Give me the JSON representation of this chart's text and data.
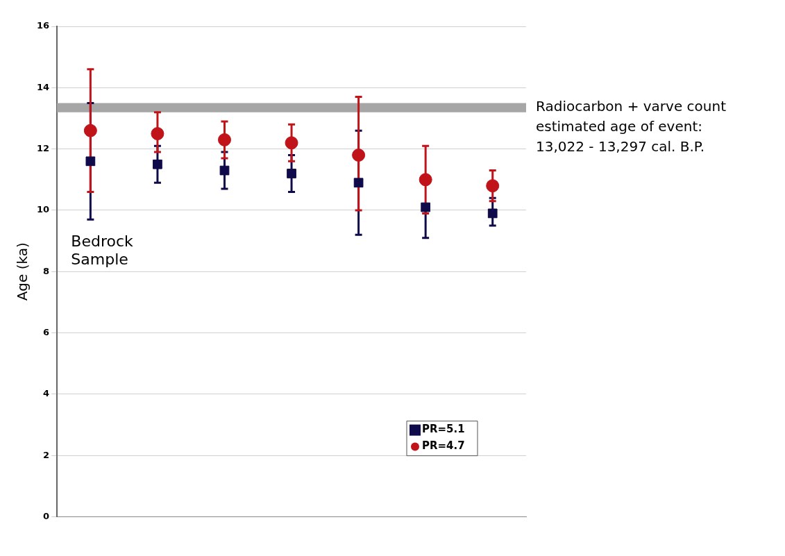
{
  "chart_data": {
    "type": "scatter",
    "ylabel": "Age (ka)",
    "categories": [
      null,
      null,
      null,
      null,
      null,
      null,
      null
    ],
    "ylim": [
      0,
      16
    ],
    "yticks": [
      0,
      2,
      4,
      6,
      8,
      10,
      12,
      14,
      16
    ],
    "grid": "y",
    "legend": "bottom right",
    "series": [
      {
        "name": "PR=5.1",
        "color": "#0f0a4a",
        "marker": "square",
        "values": [
          11.6,
          11.5,
          11.3,
          11.2,
          10.9,
          10.1,
          9.9
        ],
        "errors": [
          [
            9.7,
            13.5
          ],
          [
            10.9,
            12.1
          ],
          [
            10.7,
            11.9
          ],
          [
            10.6,
            11.8
          ],
          [
            9.2,
            12.6
          ],
          [
            9.1,
            10.1
          ],
          [
            9.5,
            10.4
          ]
        ]
      },
      {
        "name": "PR=4.7",
        "color": "#c0141a",
        "marker": "circle",
        "values": [
          12.6,
          12.5,
          12.3,
          12.2,
          11.8,
          11.0,
          10.8
        ],
        "errors": [
          [
            10.6,
            14.6
          ],
          [
            11.9,
            13.2
          ],
          [
            11.7,
            12.9
          ],
          [
            11.6,
            12.8
          ],
          [
            10.0,
            13.7
          ],
          [
            9.9,
            12.1
          ],
          [
            10.3,
            11.3
          ]
        ]
      }
    ],
    "bands": [
      {
        "axis": "y",
        "from": 13.2,
        "to": 13.5,
        "label": "Radiocarbon + varve count estimated age of event: 13,022 - 13,297 cal. B.P.",
        "color": "#a6a6a6"
      }
    ],
    "annotations": [
      "Bedrock Sample"
    ]
  }
}
